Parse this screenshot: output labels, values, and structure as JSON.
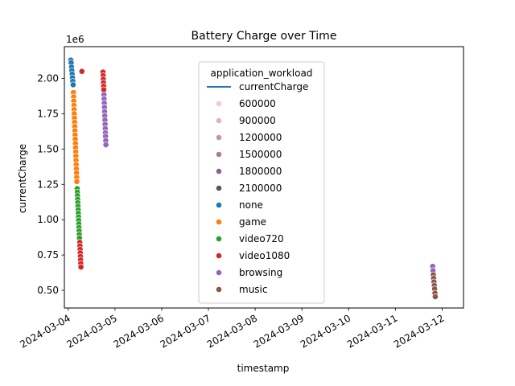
{
  "chart_data": {
    "type": "scatter",
    "title": "Battery Charge over Time",
    "xlabel": "timestamp",
    "ylabel": "currentCharge",
    "y_offset_label": "1e6",
    "xlim": [
      "2024-03-03T22:00",
      "2024-03-12T11:00"
    ],
    "ylim": [
      375000,
      2225000
    ],
    "x_ticks": [
      "2024-03-04",
      "2024-03-05",
      "2024-03-06",
      "2024-03-07",
      "2024-03-08",
      "2024-03-09",
      "2024-03-10",
      "2024-03-11",
      "2024-03-12"
    ],
    "y_ticks": [
      500000,
      750000,
      1000000,
      1250000,
      1500000,
      1750000,
      2000000
    ],
    "y_tick_labels": [
      "0.50",
      "0.75",
      "1.00",
      "1.25",
      "1.50",
      "1.75",
      "2.00"
    ],
    "grid": false,
    "legend": {
      "title": "application_workload",
      "placement": "upper center",
      "line_entry": {
        "label": "currentCharge",
        "color": "#1f77b4"
      },
      "size_entries": [
        {
          "label": "600000",
          "color": "#ebcdd2"
        },
        {
          "label": "900000",
          "color": "#dcb4c2"
        },
        {
          "label": "1200000",
          "color": "#c8959f"
        },
        {
          "label": "1500000",
          "color": "#ad7c9f"
        },
        {
          "label": "1800000",
          "color": "#8c638e"
        },
        {
          "label": "2100000",
          "color": "#5c5369"
        }
      ],
      "hue_entries": [
        {
          "label": "none",
          "color": "#1f77b4"
        },
        {
          "label": "game",
          "color": "#ff7f0e"
        },
        {
          "label": "video720",
          "color": "#2ca02c"
        },
        {
          "label": "video1080",
          "color": "#d62728"
        },
        {
          "label": "browsing",
          "color": "#9467bd"
        },
        {
          "label": "music",
          "color": "#8c564b"
        }
      ]
    },
    "series": [
      {
        "name": "none",
        "color": "#1f77b4",
        "points": [
          {
            "x": "2024-03-04T01:20",
            "y": 2130000
          },
          {
            "x": "2024-03-04T01:30",
            "y": 2110000
          },
          {
            "x": "2024-03-04T01:40",
            "y": 2080000
          },
          {
            "x": "2024-03-04T01:50",
            "y": 2055000
          },
          {
            "x": "2024-03-04T02:00",
            "y": 2030000
          },
          {
            "x": "2024-03-04T02:10",
            "y": 2005000
          },
          {
            "x": "2024-03-04T02:20",
            "y": 1980000
          },
          {
            "x": "2024-03-04T02:30",
            "y": 1955000
          }
        ]
      },
      {
        "name": "game",
        "color": "#ff7f0e",
        "points": [
          {
            "x": "2024-03-04T02:40",
            "y": 1900000
          },
          {
            "x": "2024-03-04T02:45",
            "y": 1870000
          },
          {
            "x": "2024-03-04T02:50",
            "y": 1840000
          },
          {
            "x": "2024-03-04T02:55",
            "y": 1810000
          },
          {
            "x": "2024-03-04T03:00",
            "y": 1780000
          },
          {
            "x": "2024-03-04T03:05",
            "y": 1750000
          },
          {
            "x": "2024-03-04T03:10",
            "y": 1720000
          },
          {
            "x": "2024-03-04T03:15",
            "y": 1690000
          },
          {
            "x": "2024-03-04T03:20",
            "y": 1660000
          },
          {
            "x": "2024-03-04T03:25",
            "y": 1630000
          },
          {
            "x": "2024-03-04T03:30",
            "y": 1600000
          },
          {
            "x": "2024-03-04T03:35",
            "y": 1570000
          },
          {
            "x": "2024-03-04T03:40",
            "y": 1540000
          },
          {
            "x": "2024-03-04T03:45",
            "y": 1510000
          },
          {
            "x": "2024-03-04T03:50",
            "y": 1480000
          },
          {
            "x": "2024-03-04T03:55",
            "y": 1450000
          },
          {
            "x": "2024-03-04T04:00",
            "y": 1420000
          },
          {
            "x": "2024-03-04T04:05",
            "y": 1390000
          },
          {
            "x": "2024-03-04T04:10",
            "y": 1360000
          },
          {
            "x": "2024-03-04T04:15",
            "y": 1330000
          },
          {
            "x": "2024-03-04T04:20",
            "y": 1300000
          },
          {
            "x": "2024-03-04T04:25",
            "y": 1270000
          }
        ]
      },
      {
        "name": "video720",
        "color": "#2ca02c",
        "points": [
          {
            "x": "2024-03-04T04:35",
            "y": 1220000
          },
          {
            "x": "2024-03-04T04:40",
            "y": 1195000
          },
          {
            "x": "2024-03-04T04:45",
            "y": 1170000
          },
          {
            "x": "2024-03-04T04:50",
            "y": 1145000
          },
          {
            "x": "2024-03-04T04:55",
            "y": 1120000
          },
          {
            "x": "2024-03-04T05:00",
            "y": 1095000
          },
          {
            "x": "2024-03-04T05:05",
            "y": 1070000
          },
          {
            "x": "2024-03-04T05:10",
            "y": 1045000
          },
          {
            "x": "2024-03-04T05:15",
            "y": 1020000
          },
          {
            "x": "2024-03-04T05:20",
            "y": 995000
          },
          {
            "x": "2024-03-04T05:25",
            "y": 970000
          },
          {
            "x": "2024-03-04T05:30",
            "y": 945000
          },
          {
            "x": "2024-03-04T05:35",
            "y": 920000
          },
          {
            "x": "2024-03-04T05:40",
            "y": 895000
          },
          {
            "x": "2024-03-04T05:45",
            "y": 870000
          }
        ]
      },
      {
        "name": "video1080",
        "color": "#d62728",
        "points": [
          {
            "x": "2024-03-04T05:55",
            "y": 840000
          },
          {
            "x": "2024-03-04T06:00",
            "y": 815000
          },
          {
            "x": "2024-03-04T06:05",
            "y": 790000
          },
          {
            "x": "2024-03-04T06:10",
            "y": 765000
          },
          {
            "x": "2024-03-04T06:15",
            "y": 740000
          },
          {
            "x": "2024-03-04T06:20",
            "y": 715000
          },
          {
            "x": "2024-03-04T06:25",
            "y": 690000
          },
          {
            "x": "2024-03-04T06:30",
            "y": 665000
          },
          {
            "x": "2024-03-04T07:00",
            "y": 2050000
          },
          {
            "x": "2024-03-04T17:50",
            "y": 2045000
          },
          {
            "x": "2024-03-04T17:55",
            "y": 2020000
          },
          {
            "x": "2024-03-04T18:00",
            "y": 1995000
          },
          {
            "x": "2024-03-04T18:05",
            "y": 1970000
          },
          {
            "x": "2024-03-04T18:10",
            "y": 1945000
          },
          {
            "x": "2024-03-04T18:15",
            "y": 1920000
          }
        ]
      },
      {
        "name": "browsing",
        "color": "#9467bd",
        "points": [
          {
            "x": "2024-03-04T18:20",
            "y": 1885000
          },
          {
            "x": "2024-03-04T18:25",
            "y": 1855000
          },
          {
            "x": "2024-03-04T18:30",
            "y": 1825000
          },
          {
            "x": "2024-03-04T18:35",
            "y": 1795000
          },
          {
            "x": "2024-03-04T18:40",
            "y": 1765000
          },
          {
            "x": "2024-03-04T18:45",
            "y": 1735000
          },
          {
            "x": "2024-03-04T18:50",
            "y": 1705000
          },
          {
            "x": "2024-03-04T18:55",
            "y": 1675000
          },
          {
            "x": "2024-03-04T19:00",
            "y": 1645000
          },
          {
            "x": "2024-03-04T19:05",
            "y": 1615000
          },
          {
            "x": "2024-03-04T19:10",
            "y": 1590000
          },
          {
            "x": "2024-03-04T19:15",
            "y": 1560000
          },
          {
            "x": "2024-03-04T19:20",
            "y": 1530000
          },
          {
            "x": "2024-03-11T19:10",
            "y": 670000
          },
          {
            "x": "2024-03-11T19:20",
            "y": 640000
          }
        ]
      },
      {
        "name": "music",
        "color": "#8c564b",
        "points": [
          {
            "x": "2024-03-11T19:30",
            "y": 610000
          },
          {
            "x": "2024-03-11T19:40",
            "y": 585000
          },
          {
            "x": "2024-03-11T19:50",
            "y": 560000
          },
          {
            "x": "2024-03-11T20:00",
            "y": 535000
          },
          {
            "x": "2024-03-11T20:10",
            "y": 510000
          },
          {
            "x": "2024-03-11T20:20",
            "y": 480000
          },
          {
            "x": "2024-03-11T20:30",
            "y": 455000
          }
        ]
      }
    ]
  }
}
